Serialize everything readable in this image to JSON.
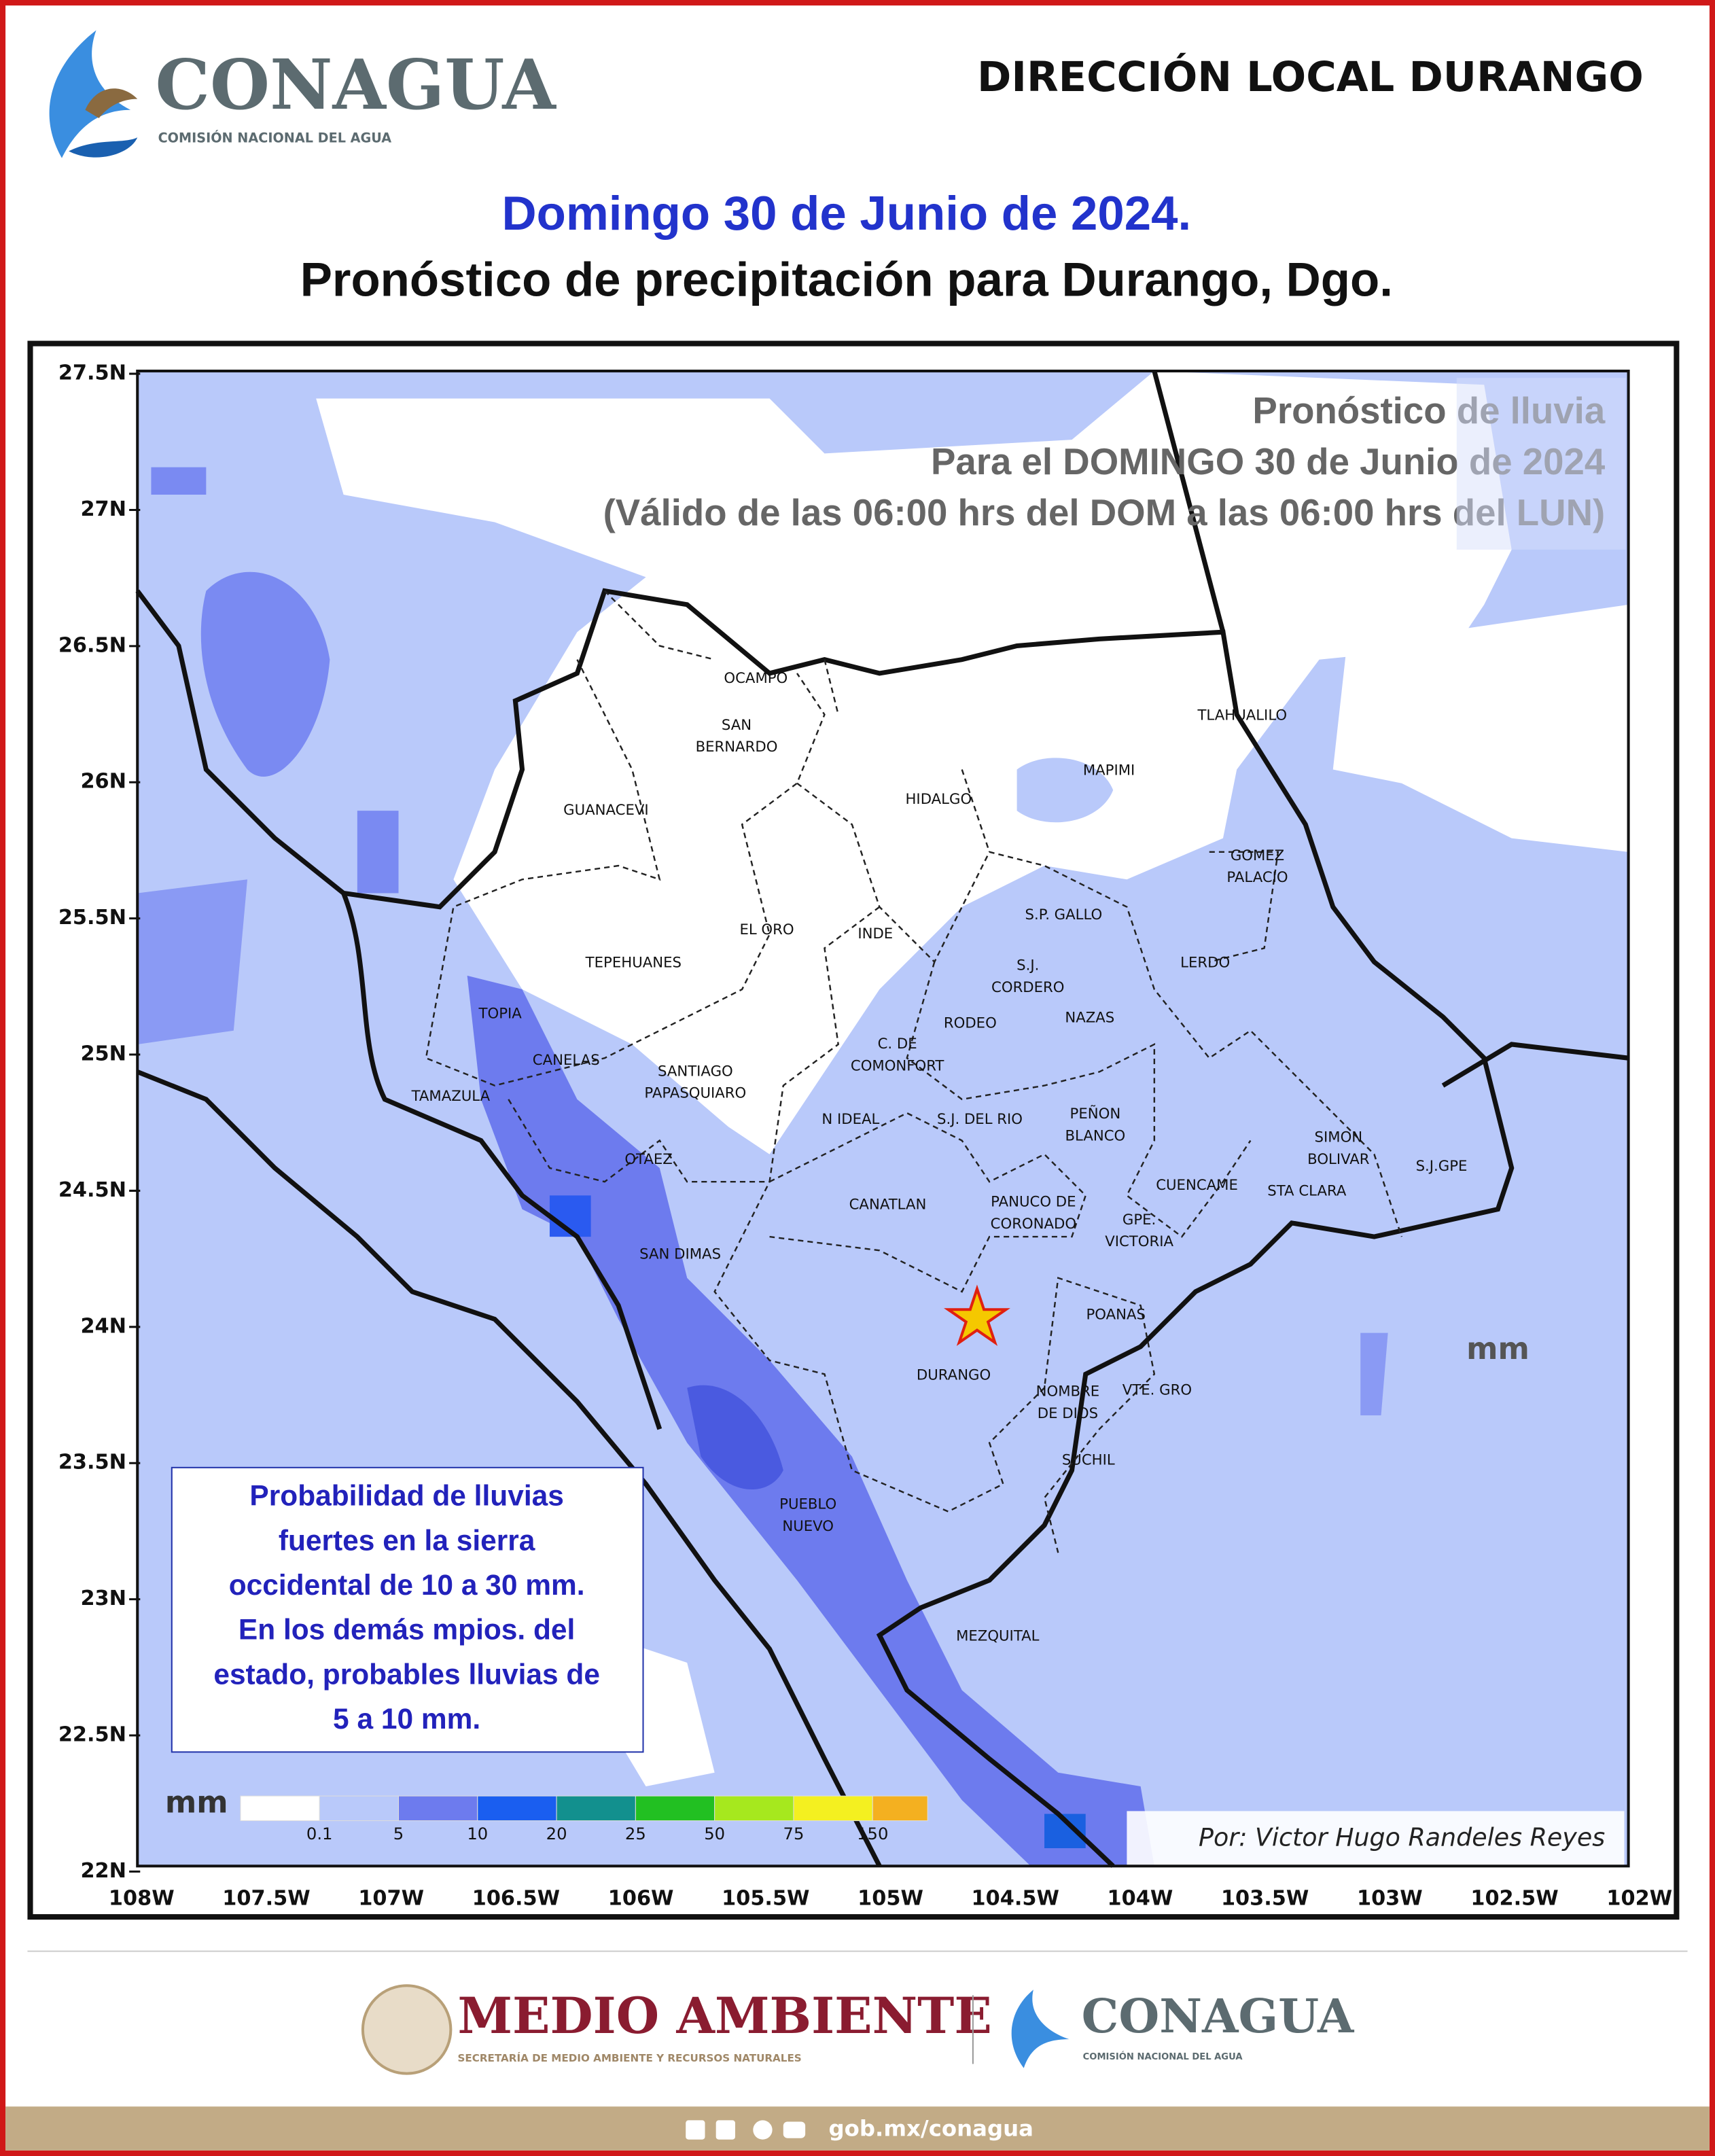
{
  "header": {
    "logo_name": "CONAGUA",
    "logo_sub": "COMISIÓN NACIONAL DEL AGUA",
    "office": "DIRECCIÓN LOCAL DURANGO"
  },
  "title": {
    "date": "Domingo 30 de Junio de 2024.",
    "subtitle": "Pronóstico de precipitación para Durango, Dgo."
  },
  "map": {
    "overlay": [
      "Pronóstico de lluvia",
      "Para el DOMINGO 30 de Junio de 2024",
      "(Válido de las 06:00 hrs del DOM a las 06:00 hrs del LUN)"
    ],
    "lat_labels": [
      "27.5N",
      "27N",
      "26.5N",
      "26N",
      "25.5N",
      "25N",
      "24.5N",
      "24N",
      "23.5N",
      "23N",
      "22.5N",
      "22N"
    ],
    "lon_labels": [
      "108W",
      "107.5W",
      "107W",
      "106.5W",
      "106W",
      "105.5W",
      "105W",
      "104.5W",
      "104W",
      "103.5W",
      "103W",
      "102.5W",
      "102W"
    ],
    "municipalities": [
      [
        "OCAMPO"
      ],
      [
        "SAN",
        "BERNARDO"
      ],
      [
        "GUANACEVI"
      ],
      [
        "HIDALGO"
      ],
      [
        "MAPIMI"
      ],
      [
        "TLAHUALILO"
      ],
      [
        "GOMEZ",
        "PALACIO"
      ],
      [
        "EL ORO"
      ],
      [
        "INDE"
      ],
      [
        "S.P. GALLO"
      ],
      [
        "TEPEHUANES"
      ],
      [
        "LERDO"
      ],
      [
        "S.J.",
        "CORDERO"
      ],
      [
        "TOPIA"
      ],
      [
        "RODEO"
      ],
      [
        "NAZAS"
      ],
      [
        "C. DE",
        "COMONFORT"
      ],
      [
        "CANELAS"
      ],
      [
        "SANTIAGO",
        "PAPASQUIARO"
      ],
      [
        "TAMAZULA"
      ],
      [
        "N IDEAL"
      ],
      [
        "S.J. DEL RIO"
      ],
      [
        "PEÑON",
        "BLANCO"
      ],
      [
        "SIMON",
        "BOLIVAR"
      ],
      [
        "S.J.GPE"
      ],
      [
        "OTAEZ"
      ],
      [
        "CUENCAME"
      ],
      [
        "STA CLARA"
      ],
      [
        "CANATLAN"
      ],
      [
        "PANUCO DE",
        "CORONADO"
      ],
      [
        "GPE.",
        "VICTORIA"
      ],
      [
        "SAN DIMAS"
      ],
      [
        "POANAS"
      ],
      [
        "DURANGO"
      ],
      [
        "NOMBRE",
        "DE DIOS"
      ],
      [
        "VTE. GRO"
      ],
      [
        "SUCHIL"
      ],
      [
        "PUEBLO",
        "NUEVO"
      ],
      [
        "MEZQUITAL"
      ]
    ],
    "unit": "mm",
    "note": [
      "Probabilidad de lluvias",
      "fuertes en la sierra",
      "occidental de 10 a 30 mm.",
      "En los demás mpios. del",
      "estado, probables lluvias de",
      "5 a 10 mm."
    ],
    "legend": {
      "title": "mm",
      "ticks": [
        "0.1",
        "5",
        "10",
        "20",
        "25",
        "50",
        "75",
        "150"
      ]
    },
    "credit": "Por: Victor Hugo Randeles Reyes"
  },
  "footer": {
    "brand": "MEDIO AMBIENTE",
    "brand_sub": "SECRETARÍA DE MEDIO AMBIENTE Y RECURSOS NATURALES",
    "logo_name": "CONAGUA",
    "logo_sub": "COMISIÓN NACIONAL DEL AGUA",
    "url": "gob.mx/conagua"
  }
}
